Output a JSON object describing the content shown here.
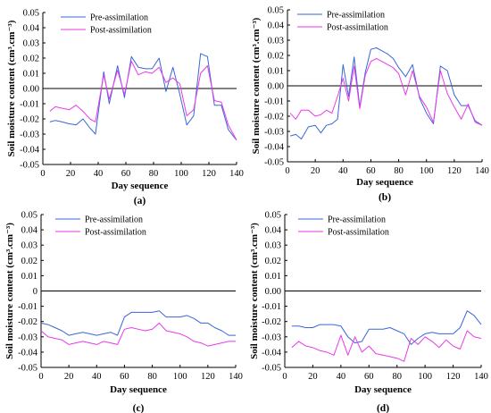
{
  "chart_data": [
    {
      "panel": "(a)",
      "type": "line",
      "xlabel": "Day sequence",
      "ylabel": "Soil moisture content (cm³.cm⁻³)",
      "xlim": [
        0,
        140
      ],
      "ylim": [
        -0.05,
        0.05
      ],
      "xticks": [
        0,
        20,
        40,
        60,
        80,
        100,
        120,
        140
      ],
      "yticks": [
        -0.05,
        -0.04,
        -0.03,
        -0.02,
        -0.01,
        0.0,
        0.01,
        0.02,
        0.03,
        0.04,
        0.05
      ],
      "ytick_labels": [
        "-0.05",
        "-0.04",
        "-0.03",
        "-0.02",
        "-0.01",
        "0.00",
        "0.01",
        "0.02",
        "0.03",
        "0.04",
        "0.05"
      ],
      "zero_line": true,
      "legend": "top-left",
      "series": [
        {
          "name": "Pre-assimilation",
          "color": "#3a66d8",
          "x": [
            5,
            9,
            14,
            18,
            24,
            29,
            34,
            38,
            44,
            48,
            54,
            59,
            64,
            69,
            74,
            79,
            84,
            89,
            94,
            99,
            104,
            109,
            114,
            119,
            124,
            129,
            134,
            140
          ],
          "y": [
            -0.022,
            -0.021,
            -0.022,
            -0.023,
            -0.024,
            -0.02,
            -0.026,
            -0.03,
            0.011,
            -0.01,
            0.015,
            -0.006,
            0.021,
            0.014,
            0.013,
            0.013,
            0.02,
            -0.002,
            0.014,
            -0.004,
            -0.024,
            -0.018,
            0.023,
            0.021,
            -0.011,
            -0.011,
            -0.027,
            -0.034
          ]
        },
        {
          "name": "Post-assimilation",
          "color": "#e83ae8",
          "x": [
            5,
            9,
            14,
            19,
            24,
            29,
            34,
            38,
            44,
            48,
            54,
            59,
            64,
            69,
            74,
            79,
            84,
            89,
            94,
            99,
            104,
            109,
            114,
            119,
            124,
            129,
            134,
            140
          ],
          "y": [
            -0.015,
            -0.012,
            -0.013,
            -0.014,
            -0.011,
            -0.015,
            -0.02,
            -0.022,
            0.009,
            -0.007,
            0.012,
            -0.004,
            0.018,
            0.009,
            0.011,
            0.01,
            0.014,
            0.004,
            0.007,
            0.003,
            -0.018,
            -0.014,
            0.01,
            0.015,
            -0.008,
            -0.009,
            -0.024,
            -0.034
          ]
        }
      ]
    },
    {
      "panel": "(b)",
      "type": "line",
      "xlabel": "Day sequence",
      "ylabel": "Soil moisture content (cm³.cm⁻³)",
      "xlim": [
        0,
        140
      ],
      "ylim": [
        -0.05,
        0.05
      ],
      "xticks": [
        0,
        20,
        40,
        60,
        80,
        100,
        120,
        140
      ],
      "yticks": [
        -0.05,
        -0.04,
        -0.03,
        -0.02,
        -0.01,
        0.0,
        0.01,
        0.02,
        0.03,
        0.04,
        0.05
      ],
      "ytick_labels": [
        "-0.05",
        "-0.04",
        "-0.03",
        "-0.02",
        "-0.01",
        "0.00",
        "0.01",
        "0.02",
        "0.03",
        "0.04",
        "0.05"
      ],
      "zero_line": true,
      "legend": "top-right",
      "series": [
        {
          "name": "Pre-assimilation",
          "color": "#3a66d8",
          "x": [
            2,
            6,
            10,
            15,
            20,
            24,
            28,
            32,
            36,
            40,
            44,
            48,
            52,
            56,
            60,
            64,
            68,
            72,
            76,
            80,
            85,
            90,
            95,
            100,
            105,
            110,
            115,
            120,
            125,
            130,
            135,
            140
          ],
          "y": [
            -0.033,
            -0.032,
            -0.035,
            -0.027,
            -0.026,
            -0.031,
            -0.026,
            -0.025,
            -0.022,
            0.014,
            -0.007,
            0.019,
            -0.014,
            0.009,
            0.024,
            0.025,
            0.023,
            0.021,
            0.018,
            0.012,
            0.006,
            0.014,
            -0.008,
            -0.018,
            -0.025,
            0.013,
            0.01,
            -0.006,
            -0.013,
            -0.013,
            -0.023,
            -0.026
          ]
        },
        {
          "name": "Post-assimilation",
          "color": "#e83ae8",
          "x": [
            2,
            6,
            10,
            15,
            20,
            24,
            28,
            32,
            36,
            40,
            44,
            48,
            52,
            56,
            60,
            64,
            68,
            72,
            76,
            80,
            85,
            90,
            95,
            100,
            105,
            110,
            115,
            120,
            125,
            130,
            135,
            140
          ],
          "y": [
            -0.018,
            -0.022,
            -0.016,
            -0.016,
            -0.02,
            -0.019,
            -0.016,
            -0.018,
            -0.007,
            0.005,
            -0.01,
            0.013,
            -0.015,
            0.007,
            0.016,
            0.018,
            0.016,
            0.014,
            0.012,
            0.008,
            -0.006,
            0.01,
            -0.007,
            -0.014,
            -0.024,
            0.01,
            -0.005,
            -0.014,
            -0.022,
            -0.012,
            -0.024,
            -0.026
          ]
        }
      ]
    },
    {
      "panel": "(c)",
      "type": "line",
      "xlabel": "Day sequence",
      "ylabel": "Soil moisture content (cm³.cm⁻³)",
      "xlim": [
        0,
        140
      ],
      "ylim": [
        -0.05,
        0.05
      ],
      "xticks": [
        0,
        20,
        40,
        60,
        80,
        100,
        120,
        140
      ],
      "yticks": [
        -0.05,
        -0.04,
        -0.03,
        -0.02,
        -0.01,
        0.0,
        0.01,
        0.02,
        0.03,
        0.04,
        0.05
      ],
      "ytick_labels": [
        "-0.05",
        "-0.04",
        "-0.03",
        "-0.02",
        "-0.01",
        "0",
        "0.01",
        "0.02",
        "0.03",
        "0.04",
        "0.05"
      ],
      "zero_line": true,
      "legend": "top-right",
      "series": [
        {
          "name": "Pre-assimilation",
          "color": "#3a66d8",
          "x": [
            0,
            5,
            10,
            15,
            20,
            25,
            30,
            35,
            40,
            45,
            50,
            55,
            60,
            65,
            70,
            75,
            80,
            85,
            90,
            95,
            100,
            105,
            110,
            115,
            120,
            125,
            130,
            135,
            140
          ],
          "y": [
            -0.021,
            -0.022,
            -0.024,
            -0.026,
            -0.029,
            -0.028,
            -0.027,
            -0.028,
            -0.029,
            -0.028,
            -0.027,
            -0.029,
            -0.017,
            -0.014,
            -0.014,
            -0.014,
            -0.014,
            -0.013,
            -0.017,
            -0.017,
            -0.017,
            -0.016,
            -0.018,
            -0.021,
            -0.021,
            -0.024,
            -0.026,
            -0.029,
            -0.029
          ]
        },
        {
          "name": "Post-assimilation",
          "color": "#e83ae8",
          "x": [
            0,
            5,
            10,
            15,
            20,
            25,
            30,
            35,
            40,
            45,
            50,
            55,
            60,
            65,
            70,
            75,
            80,
            85,
            90,
            95,
            100,
            105,
            110,
            115,
            120,
            125,
            130,
            135,
            140
          ],
          "y": [
            -0.026,
            -0.03,
            -0.031,
            -0.032,
            -0.035,
            -0.034,
            -0.033,
            -0.034,
            -0.035,
            -0.033,
            -0.034,
            -0.035,
            -0.025,
            -0.024,
            -0.025,
            -0.026,
            -0.025,
            -0.021,
            -0.026,
            -0.027,
            -0.028,
            -0.03,
            -0.033,
            -0.034,
            -0.036,
            -0.035,
            -0.034,
            -0.033,
            -0.033
          ]
        }
      ]
    },
    {
      "panel": "(d)",
      "type": "line",
      "xlabel": "Day sequence",
      "ylabel": "Soil moisture content (cm³.cm⁻³)",
      "xlim": [
        0,
        140
      ],
      "ylim": [
        -0.05,
        0.05
      ],
      "xticks": [
        0,
        20,
        40,
        60,
        80,
        100,
        120,
        140
      ],
      "yticks": [
        -0.05,
        -0.04,
        -0.03,
        -0.02,
        -0.01,
        0.0,
        0.01,
        0.02,
        0.03,
        0.04,
        0.05
      ],
      "ytick_labels": [
        "-0.05",
        "-0.04",
        "-0.03",
        "-0.02",
        "-0.01",
        "0.00",
        "0.01",
        "0.02",
        "0.03",
        "0.04",
        "0.05"
      ],
      "zero_line": true,
      "legend": "top-right",
      "series": [
        {
          "name": "Pre-assimilation",
          "color": "#3a66d8",
          "x": [
            5,
            10,
            15,
            20,
            25,
            30,
            35,
            40,
            45,
            50,
            55,
            60,
            65,
            70,
            75,
            80,
            85,
            90,
            95,
            100,
            105,
            110,
            115,
            120,
            125,
            130,
            135,
            140
          ],
          "y": [
            -0.023,
            -0.023,
            -0.024,
            -0.024,
            -0.022,
            -0.022,
            -0.022,
            -0.023,
            -0.03,
            -0.034,
            -0.033,
            -0.025,
            -0.025,
            -0.025,
            -0.024,
            -0.026,
            -0.028,
            -0.035,
            -0.031,
            -0.028,
            -0.027,
            -0.028,
            -0.028,
            -0.028,
            -0.024,
            -0.013,
            -0.016,
            -0.022
          ]
        },
        {
          "name": "Post-assimilation",
          "color": "#e83ae8",
          "x": [
            5,
            10,
            15,
            20,
            25,
            30,
            35,
            40,
            45,
            50,
            55,
            60,
            65,
            70,
            75,
            80,
            85,
            90,
            95,
            100,
            105,
            110,
            115,
            120,
            125,
            130,
            135,
            140
          ],
          "y": [
            -0.037,
            -0.033,
            -0.036,
            -0.037,
            -0.039,
            -0.04,
            -0.042,
            -0.029,
            -0.042,
            -0.03,
            -0.04,
            -0.036,
            -0.041,
            -0.042,
            -0.043,
            -0.044,
            -0.046,
            -0.031,
            -0.035,
            -0.03,
            -0.033,
            -0.037,
            -0.032,
            -0.036,
            -0.038,
            -0.026,
            -0.03,
            -0.031
          ]
        }
      ]
    }
  ]
}
